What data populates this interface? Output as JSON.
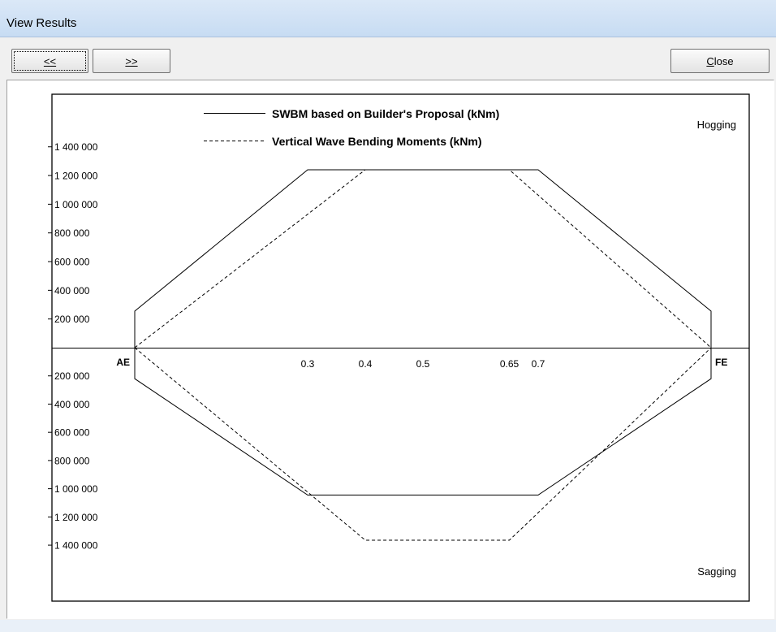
{
  "window": {
    "title": "View Results"
  },
  "toolbar": {
    "prev_label": "<<",
    "next_label": ">>",
    "close_label": "Close"
  },
  "chart_data": {
    "type": "line",
    "title": "",
    "legend_placement": "top-center",
    "x_ticks": [
      {
        "value": 0,
        "label": "AE"
      },
      {
        "value": 0.3,
        "label": "0.3"
      },
      {
        "value": 0.4,
        "label": "0.4"
      },
      {
        "value": 0.5,
        "label": "0.5"
      },
      {
        "value": 0.65,
        "label": "0.65"
      },
      {
        "value": 0.7,
        "label": "0.7"
      },
      {
        "value": 1,
        "label": "FE"
      }
    ],
    "y_ticks_positive": [
      {
        "value": 200000,
        "label": "200 000"
      },
      {
        "value": 400000,
        "label": "400 000"
      },
      {
        "value": 600000,
        "label": "600 000"
      },
      {
        "value": 800000,
        "label": "800 000"
      },
      {
        "value": 1000000,
        "label": "1 000 000"
      },
      {
        "value": 1200000,
        "label": "1 200 000"
      },
      {
        "value": 1400000,
        "label": "1 400 000"
      }
    ],
    "y_ticks_negative": [
      {
        "value": -200000,
        "label": "200 000"
      },
      {
        "value": -400000,
        "label": "400 000"
      },
      {
        "value": -600000,
        "label": "600 000"
      },
      {
        "value": -800000,
        "label": "800 000"
      },
      {
        "value": -1000000,
        "label": "1 000 000"
      },
      {
        "value": -1200000,
        "label": "1 200 000"
      },
      {
        "value": -1400000,
        "label": "1 400 000"
      }
    ],
    "xlim": [
      0,
      1
    ],
    "ylim": [
      -1400000,
      1400000
    ],
    "region_labels": {
      "top": "Hogging",
      "bottom": "Sagging"
    },
    "series": [
      {
        "name": "SWBM based on Builder's Proposal (kNm)",
        "style": "solid",
        "hogging": {
          "x": [
            0,
            0,
            0.3,
            0.7,
            1,
            1
          ],
          "y": [
            0,
            255000,
            1240000,
            1240000,
            255000,
            0
          ]
        },
        "sagging": {
          "x": [
            0,
            0,
            0.3,
            0.7,
            1,
            1
          ],
          "y": [
            0,
            -220000,
            -1045000,
            -1045000,
            -220000,
            0
          ]
        }
      },
      {
        "name": "Vertical Wave Bending Moments (kNm)",
        "style": "dashed",
        "hogging": {
          "x": [
            0,
            0.4,
            0.65,
            1
          ],
          "y": [
            0,
            1240000,
            1240000,
            0
          ]
        },
        "sagging": {
          "x": [
            0,
            0.4,
            0.65,
            1
          ],
          "y": [
            0,
            -1365000,
            -1365000,
            0
          ]
        }
      }
    ]
  }
}
